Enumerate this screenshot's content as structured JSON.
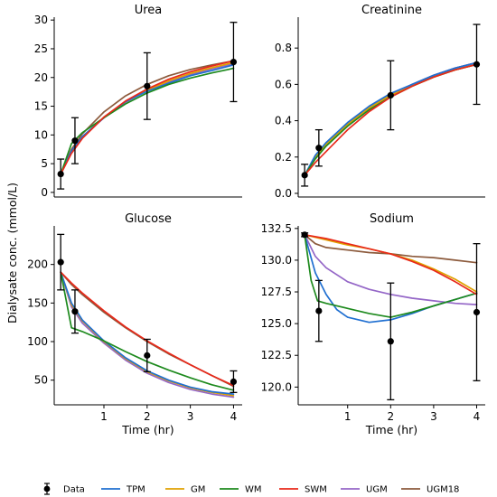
{
  "figure": {
    "ylabel": "Dialysate conc. (mmol/L)"
  },
  "legend": {
    "entries": [
      {
        "name": "Data",
        "color": "#000000",
        "kind": "marker"
      },
      {
        "name": "TPM",
        "color": "#1f6fd1",
        "kind": "line"
      },
      {
        "name": "GM",
        "color": "#e0a100",
        "kind": "line"
      },
      {
        "name": "WM",
        "color": "#1e8a1e",
        "kind": "line"
      },
      {
        "name": "SWM",
        "color": "#e8281a",
        "kind": "line"
      },
      {
        "name": "UGM",
        "color": "#9466c7",
        "kind": "line"
      },
      {
        "name": "UGM18",
        "color": "#8c5a3c",
        "kind": "line"
      }
    ]
  },
  "chart_data": [
    {
      "type": "line",
      "title": "Urea",
      "xlabel": "",
      "ylabel": "",
      "xlim": [
        -0.15,
        4.2
      ],
      "ylim": [
        -0.8,
        30.5
      ],
      "xticks": [],
      "yticks": [
        0,
        5,
        10,
        15,
        20,
        25,
        30
      ],
      "data_points": {
        "x": [
          0,
          0.33,
          2,
          4
        ],
        "y": [
          3.2,
          9.0,
          18.5,
          22.7
        ],
        "err": [
          2.6,
          4.0,
          5.8,
          6.9
        ]
      },
      "series": [
        {
          "name": "TPM",
          "x": [
            0,
            0.25,
            0.5,
            1,
            1.5,
            2,
            2.5,
            3,
            3.5,
            4
          ],
          "y": [
            3.2,
            7.2,
            9.7,
            13.0,
            15.8,
            17.6,
            19.0,
            20.3,
            21.2,
            22.2
          ]
        },
        {
          "name": "GM",
          "x": [
            0,
            0.25,
            0.5,
            1,
            1.5,
            2,
            2.5,
            3,
            3.5,
            4
          ],
          "y": [
            3.2,
            7.0,
            9.6,
            13.1,
            15.8,
            17.8,
            19.4,
            20.7,
            21.7,
            22.6
          ]
        },
        {
          "name": "WM",
          "x": [
            0,
            0.25,
            0.5,
            1,
            1.5,
            2,
            2.5,
            3,
            3.5,
            4
          ],
          "y": [
            3.2,
            8.5,
            10.4,
            13.0,
            15.4,
            17.3,
            18.8,
            19.9,
            20.8,
            21.6
          ]
        },
        {
          "name": "SWM",
          "x": [
            0,
            0.25,
            0.5,
            1,
            1.5,
            2,
            2.5,
            3,
            3.5,
            4
          ],
          "y": [
            3.2,
            6.8,
            9.4,
            13.1,
            15.9,
            18.0,
            19.7,
            21.0,
            22.0,
            22.9
          ]
        },
        {
          "name": "UGM",
          "x": [
            0,
            0.25,
            0.5,
            1,
            1.5,
            2,
            2.5,
            3,
            3.5,
            4
          ],
          "y": [
            3.2,
            7.1,
            9.6,
            13.0,
            15.7,
            17.7,
            19.2,
            20.5,
            21.5,
            22.4
          ]
        },
        {
          "name": "UGM18",
          "x": [
            0,
            0.25,
            0.5,
            1,
            1.5,
            2,
            2.5,
            3,
            3.5,
            4
          ],
          "y": [
            3.2,
            7.5,
            10.2,
            14.0,
            16.8,
            18.8,
            20.3,
            21.4,
            22.2,
            22.9
          ]
        }
      ]
    },
    {
      "type": "line",
      "title": "Creatinine",
      "xlabel": "",
      "ylabel": "",
      "xlim": [
        -0.15,
        4.2
      ],
      "ylim": [
        -0.02,
        0.97
      ],
      "xticks": [],
      "yticks": [
        0.0,
        0.2,
        0.4,
        0.6,
        0.8
      ],
      "data_points": {
        "x": [
          0,
          0.33,
          2,
          4
        ],
        "y": [
          0.1,
          0.25,
          0.54,
          0.71
        ],
        "err": [
          0.06,
          0.1,
          0.19,
          0.22
        ]
      },
      "series": [
        {
          "name": "TPM",
          "x": [
            0,
            0.25,
            0.5,
            1,
            1.5,
            2,
            2.5,
            3,
            3.5,
            4
          ],
          "y": [
            0.1,
            0.21,
            0.28,
            0.39,
            0.48,
            0.55,
            0.6,
            0.65,
            0.69,
            0.72
          ]
        },
        {
          "name": "GM",
          "x": [
            0,
            0.25,
            0.5,
            1,
            1.5,
            2,
            2.5,
            3,
            3.5,
            4
          ],
          "y": [
            0.1,
            0.2,
            0.27,
            0.38,
            0.47,
            0.54,
            0.59,
            0.64,
            0.68,
            0.71
          ]
        },
        {
          "name": "WM",
          "x": [
            0,
            0.25,
            0.5,
            1,
            1.5,
            2,
            2.5,
            3,
            3.5,
            4
          ],
          "y": [
            0.1,
            0.19,
            0.26,
            0.37,
            0.46,
            0.53,
            0.59,
            0.64,
            0.68,
            0.71
          ]
        },
        {
          "name": "SWM",
          "x": [
            0,
            0.25,
            0.5,
            1,
            1.5,
            2,
            2.5,
            3,
            3.5,
            4
          ],
          "y": [
            0.1,
            0.17,
            0.23,
            0.35,
            0.45,
            0.53,
            0.59,
            0.64,
            0.68,
            0.71
          ]
        },
        {
          "name": "UGM",
          "x": [
            0,
            0.25,
            0.5,
            1,
            1.5,
            2,
            2.5,
            3,
            3.5,
            4
          ],
          "y": [
            0.1,
            0.2,
            0.27,
            0.38,
            0.47,
            0.54,
            0.6,
            0.65,
            0.69,
            0.72
          ]
        },
        {
          "name": "UGM18",
          "x": [
            0,
            0.25,
            0.5,
            1,
            1.5,
            2,
            2.5,
            3,
            3.5,
            4
          ],
          "y": [
            0.1,
            0.2,
            0.27,
            0.38,
            0.47,
            0.54,
            0.6,
            0.65,
            0.69,
            0.72
          ]
        }
      ]
    },
    {
      "type": "line",
      "title": "Glucose",
      "xlabel": "Time (hr)",
      "ylabel": "",
      "xlim": [
        -0.15,
        4.2
      ],
      "ylim": [
        18,
        250
      ],
      "xticks": [
        1,
        2,
        3,
        4
      ],
      "yticks": [
        50,
        100,
        150,
        200
      ],
      "data_points": {
        "x": [
          0,
          0.33,
          2,
          4
        ],
        "y": [
          203,
          139,
          82,
          48
        ],
        "err": [
          36,
          28,
          21,
          14
        ]
      },
      "series": [
        {
          "name": "TPM",
          "x": [
            0,
            0.25,
            0.5,
            1,
            1.5,
            2,
            2.5,
            3,
            3.5,
            4
          ],
          "y": [
            190,
            150,
            128,
            101,
            79,
            62,
            50,
            41,
            35,
            32
          ]
        },
        {
          "name": "GM",
          "x": [
            0,
            0.25,
            0.5,
            1,
            1.5,
            2,
            2.5,
            3,
            3.5,
            4
          ],
          "y": [
            190,
            148,
            127,
            100,
            78,
            61,
            49,
            40,
            34,
            30
          ]
        },
        {
          "name": "WM",
          "x": [
            0,
            0.25,
            0.5,
            1,
            1.5,
            2,
            2.5,
            3,
            3.5,
            4
          ],
          "y": [
            190,
            118,
            113,
            101,
            87,
            74,
            63,
            53,
            44,
            37
          ]
        },
        {
          "name": "SWM",
          "x": [
            0,
            0.25,
            0.5,
            1,
            1.5,
            2,
            2.5,
            3,
            3.5,
            4
          ],
          "y": [
            190,
            176,
            163,
            140,
            119,
            101,
            85,
            70,
            56,
            43
          ]
        },
        {
          "name": "UGM",
          "x": [
            0,
            0.25,
            0.5,
            1,
            1.5,
            2,
            2.5,
            3,
            3.5,
            4
          ],
          "y": [
            190,
            145,
            124,
            98,
            76,
            59,
            47,
            38,
            32,
            28
          ]
        },
        {
          "name": "UGM18",
          "x": [
            0,
            0.25,
            0.5,
            1,
            1.5,
            2,
            2.5,
            3,
            3.5,
            4
          ],
          "y": [
            190,
            174,
            161,
            138,
            118,
            100,
            84,
            70,
            56,
            42
          ]
        }
      ]
    },
    {
      "type": "line",
      "title": "Sodium",
      "xlabel": "Time (hr)",
      "ylabel": "",
      "xlim": [
        -0.15,
        4.2
      ],
      "ylim": [
        118.6,
        132.7
      ],
      "xticks": [
        1,
        2,
        3,
        4
      ],
      "yticks": [
        120.0,
        122.5,
        125.0,
        127.5,
        130.0,
        132.5
      ],
      "data_points": {
        "x": [
          0,
          0.33,
          2,
          4
        ],
        "y": [
          132.0,
          126.0,
          123.6,
          125.9
        ],
        "err": [
          0.15,
          2.4,
          4.6,
          5.4
        ]
      },
      "series": [
        {
          "name": "TPM",
          "x": [
            0,
            0.25,
            0.5,
            0.75,
            1,
            1.5,
            2,
            2.5,
            3,
            3.5,
            4
          ],
          "y": [
            132.0,
            129.0,
            127.3,
            126.1,
            125.5,
            125.1,
            125.3,
            125.8,
            126.4,
            126.9,
            127.4
          ]
        },
        {
          "name": "GM",
          "x": [
            0,
            0.5,
            1,
            1.5,
            2,
            2.5,
            3,
            3.5,
            4
          ],
          "y": [
            132.0,
            131.6,
            131.2,
            130.9,
            130.5,
            130.0,
            129.3,
            128.5,
            127.5
          ]
        },
        {
          "name": "WM",
          "x": [
            0,
            0.15,
            0.3,
            0.5,
            1,
            1.5,
            2,
            2.5,
            3,
            3.5,
            4
          ],
          "y": [
            132.0,
            128.4,
            126.8,
            126.6,
            126.2,
            125.8,
            125.5,
            125.9,
            126.4,
            126.9,
            127.4
          ]
        },
        {
          "name": "SWM",
          "x": [
            0,
            0.5,
            1,
            1.5,
            2,
            2.5,
            3,
            3.5,
            4
          ],
          "y": [
            132.0,
            131.7,
            131.3,
            130.9,
            130.5,
            129.9,
            129.2,
            128.3,
            127.3
          ]
        },
        {
          "name": "UGM",
          "x": [
            0,
            0.25,
            0.5,
            1,
            1.5,
            2,
            2.5,
            3,
            3.5,
            4
          ],
          "y": [
            132.0,
            130.3,
            129.4,
            128.3,
            127.7,
            127.3,
            127.0,
            126.8,
            126.6,
            126.5
          ]
        },
        {
          "name": "UGM18",
          "x": [
            0,
            0.25,
            0.5,
            1,
            1.5,
            2,
            2.5,
            3,
            3.5,
            4
          ],
          "y": [
            132.0,
            131.3,
            131.0,
            130.8,
            130.6,
            130.5,
            130.3,
            130.2,
            130.0,
            129.8
          ]
        }
      ]
    }
  ]
}
